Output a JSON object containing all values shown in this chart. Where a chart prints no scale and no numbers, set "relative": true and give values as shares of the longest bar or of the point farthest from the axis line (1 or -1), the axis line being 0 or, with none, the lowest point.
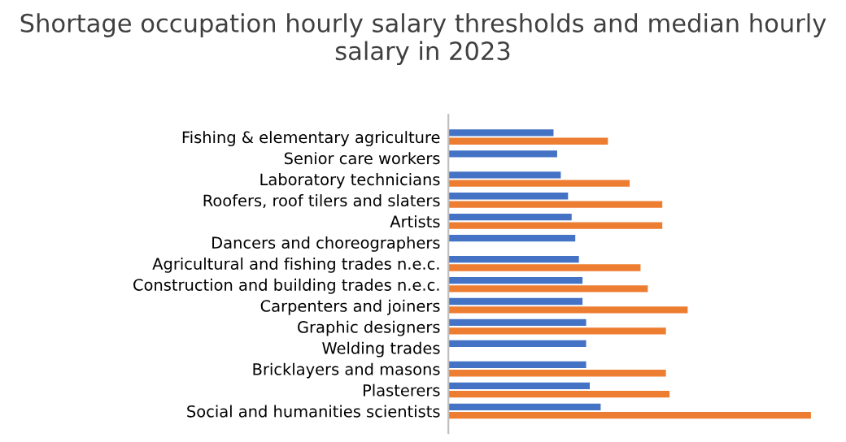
{
  "chart_data": {
    "type": "bar",
    "orientation": "horizontal",
    "relative": true,
    "legend": false,
    "title": "Shortage occupation hourly salary thresholds and median hourly salary in 2023",
    "categories": [
      "Fishing & elementary agriculture",
      "Senior care workers",
      "Laboratory technicians",
      "Roofers, roof tilers and slaters",
      "Artists",
      "Dancers and choreographers",
      "Agricultural and fishing trades n.e.c.",
      "Construction and building trades n.e.c.",
      "Carpenters and joiners",
      "Graphic designers",
      "Welding trades",
      "Bricklayers and masons",
      "Plasterers",
      "Social and humanities scientists"
    ],
    "series": [
      {
        "color": "#4472c4",
        "values": [
          0.29,
          0.3,
          0.31,
          0.33,
          0.34,
          0.35,
          0.36,
          0.37,
          0.37,
          0.38,
          0.38,
          0.38,
          0.39,
          0.42
        ]
      },
      {
        "color": "#ed7d31",
        "values": [
          0.44,
          null,
          0.5,
          0.59,
          0.59,
          null,
          0.53,
          0.55,
          0.66,
          0.6,
          null,
          0.6,
          0.61,
          1
        ]
      }
    ]
  }
}
